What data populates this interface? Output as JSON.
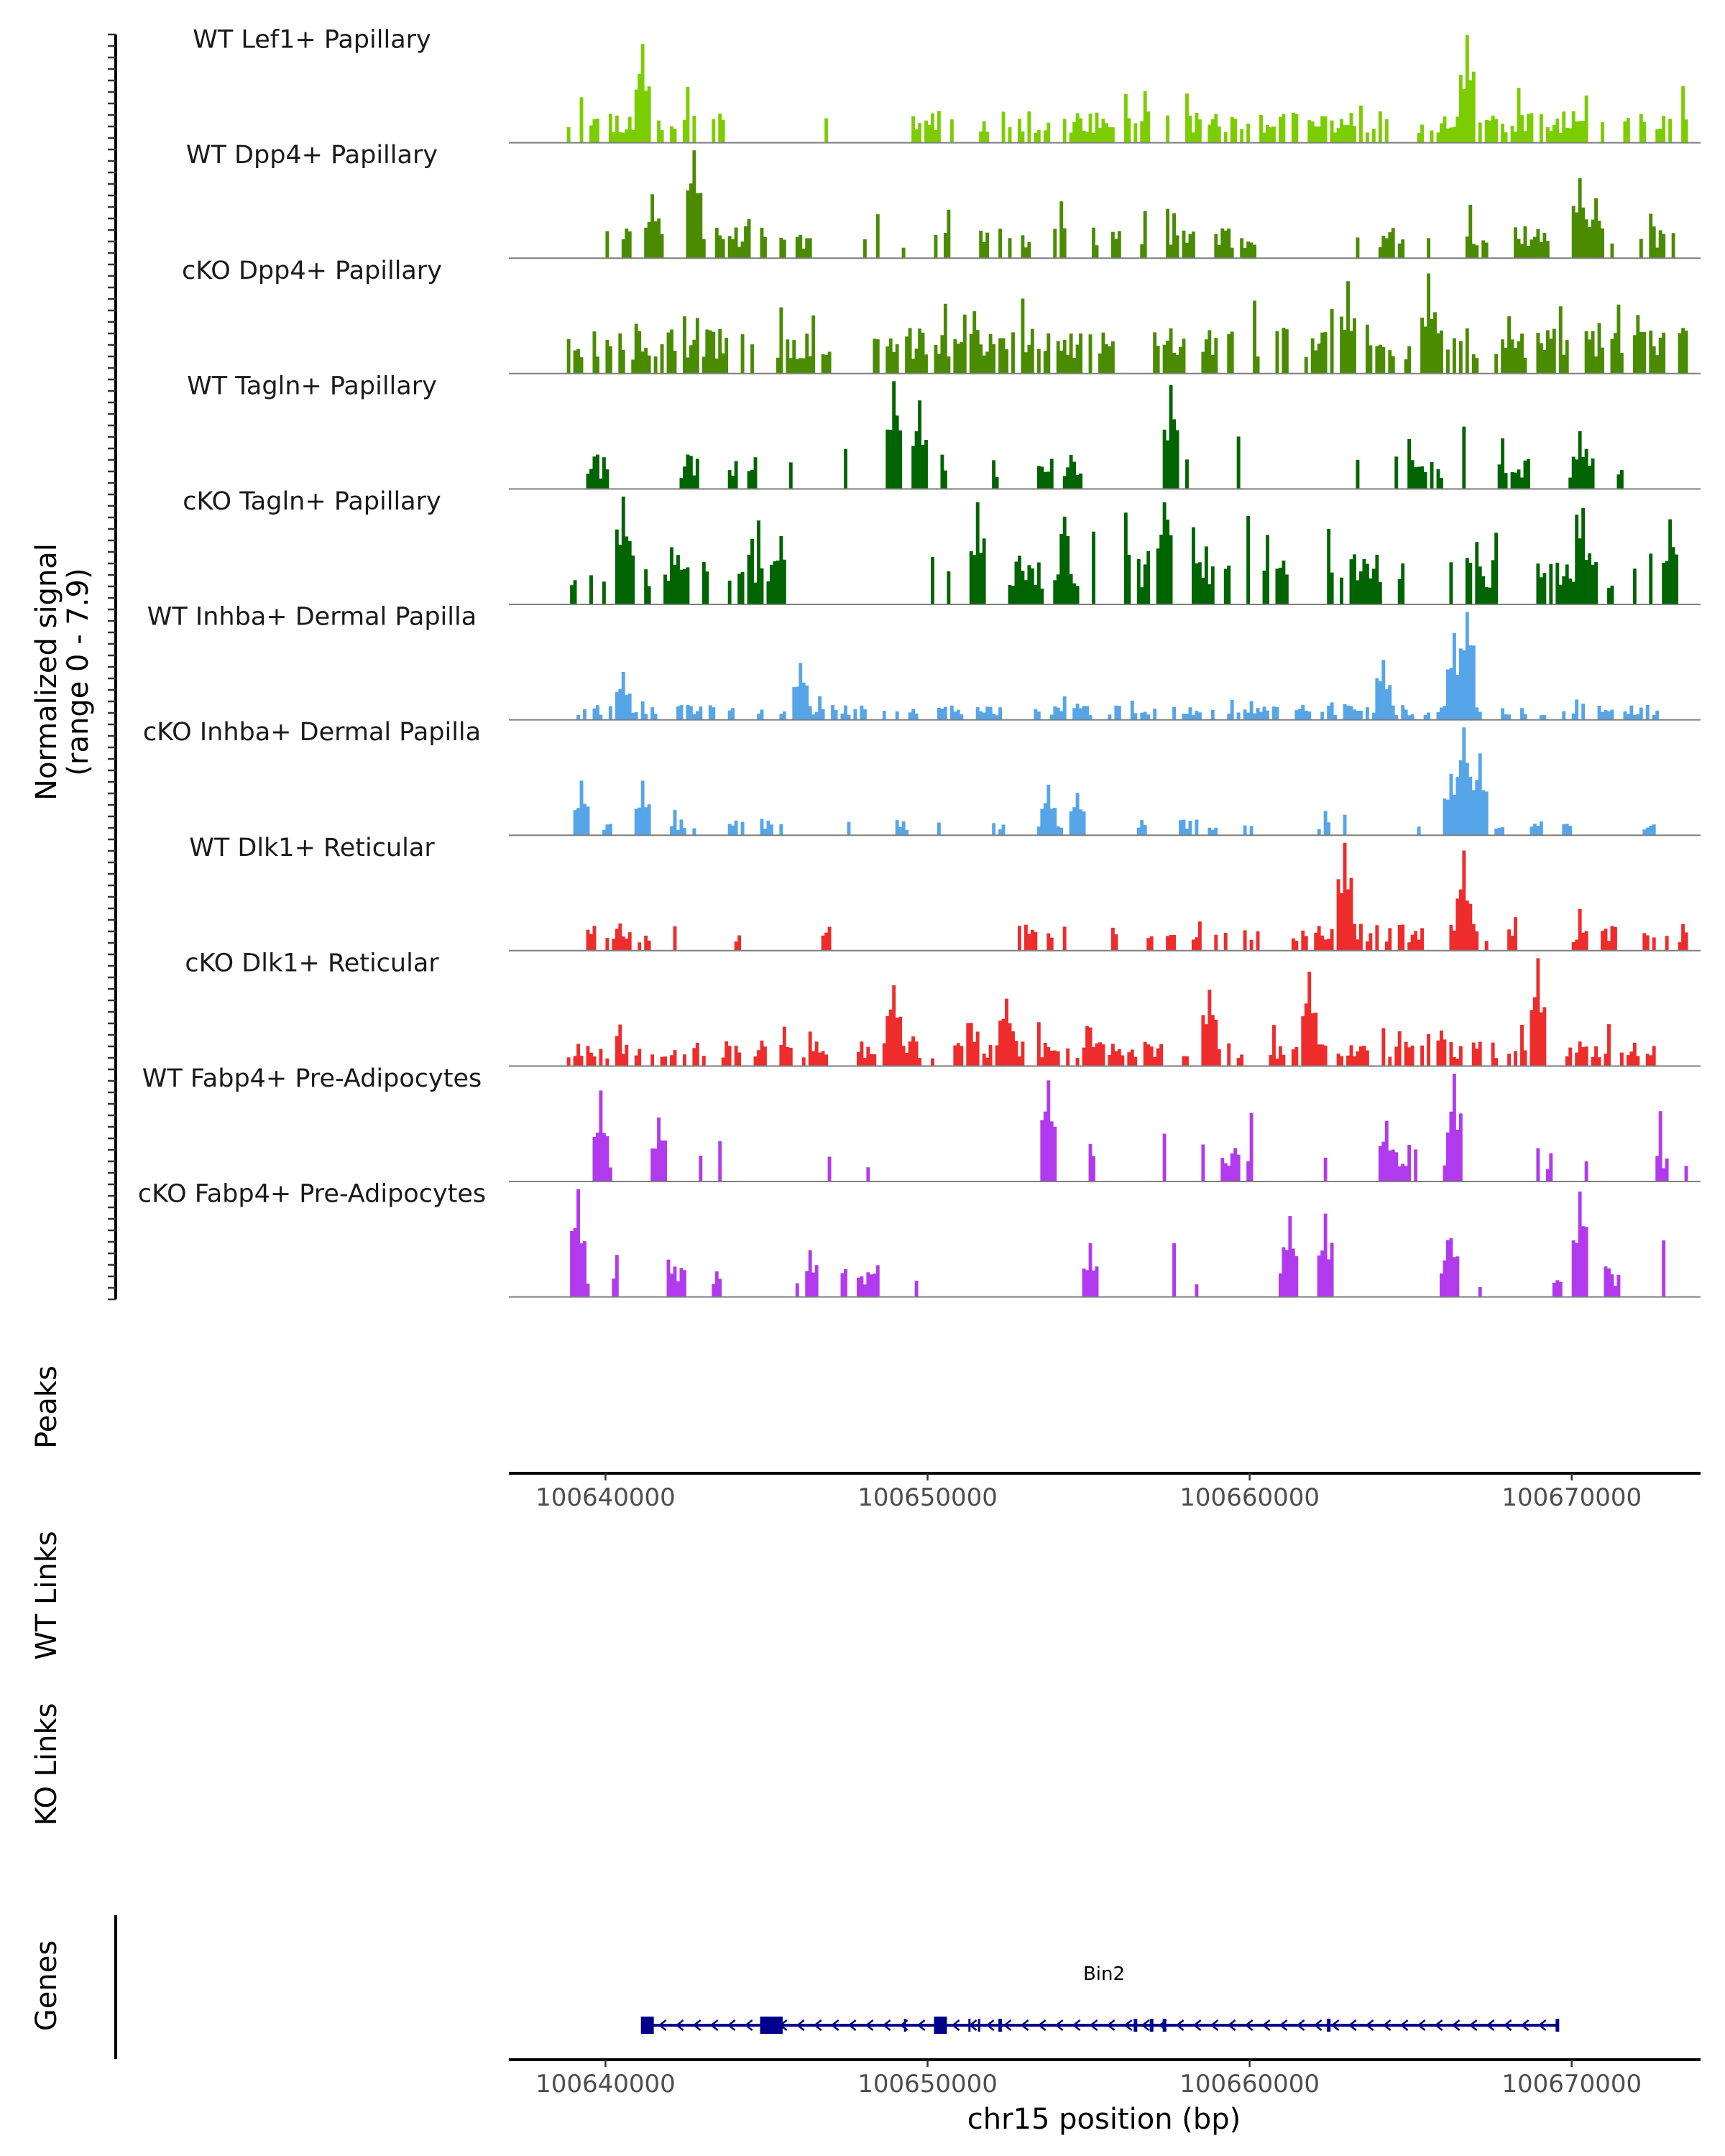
{
  "chart_data": {
    "type": "area",
    "title": "",
    "chromosome": "chr15",
    "xlabel": "chr15 position (bp)",
    "xlim": [
      100637000,
      100674000
    ],
    "x_ticks": [
      100640000,
      100650000,
      100660000,
      100670000
    ],
    "x_tick_labels": [
      "100640000",
      "100650000",
      "100660000",
      "100670000"
    ],
    "ylabel_line1": "Normalized signal",
    "ylabel_line2": "(range 0 - 7.9)",
    "ylim": [
      0,
      7.9
    ],
    "panel_labels": {
      "peaks": "Peaks",
      "wt_links": "WT Links",
      "ko_links": "KO Links",
      "genes": "Genes"
    },
    "series": [
      {
        "name": "WT Lef1+ Papillary",
        "color": "#7CCD00",
        "seed": 11,
        "density": 0.9,
        "base": 0.35,
        "max": 1.2,
        "region": [
          100638800,
          100673600
        ],
        "gaps": [
          [
            100643800,
            100646600
          ],
          [
            100647300,
            100649100
          ],
          [
            100664300,
            100665200
          ]
        ],
        "peaks": [
          [
            100641100,
            1.1
          ],
          [
            100666700,
            1.2
          ]
        ]
      },
      {
        "name": "WT Dpp4+ Papillary",
        "color": "#4A8B00",
        "seed": 23,
        "density": 0.22,
        "base": 0.8,
        "max": 2.7,
        "region": [
          100638800,
          100673600
        ],
        "gaps": [],
        "peaks": [
          [
            100642700,
            2.7
          ],
          [
            100641400,
            1.6
          ],
          [
            100670200,
            2.0
          ],
          [
            100670700,
            1.5
          ]
        ]
      },
      {
        "name": "cKO Dpp4+ Papillary",
        "color": "#4A8B00",
        "seed": 37,
        "density": 0.8,
        "base": 0.6,
        "max": 1.4,
        "region": [
          100638800,
          100673600
        ],
        "gaps": [
          [
            100647000,
            100648200
          ]
        ],
        "peaks": [
          [
            100665500,
            1.3
          ],
          [
            100663000,
            1.2
          ]
        ]
      },
      {
        "name": "WT Tagln+ Papillary",
        "color": "#006400",
        "seed": 41,
        "density": 0.15,
        "base": 0.9,
        "max": 2.8,
        "region": [
          100638800,
          100673600
        ],
        "gaps": [],
        "peaks": [
          [
            100648900,
            2.8
          ],
          [
            100657500,
            2.7
          ],
          [
            100649700,
            2.3
          ],
          [
            100670200,
            1.5
          ]
        ]
      },
      {
        "name": "cKO Tagln+ Papillary",
        "color": "#006400",
        "seed": 53,
        "density": 0.4,
        "base": 0.9,
        "max": 1.9,
        "region": [
          100638800,
          100673600
        ],
        "gaps": [
          [
            100646800,
            100650000
          ]
        ],
        "peaks": [
          [
            100640500,
            1.9
          ],
          [
            100651500,
            1.8
          ],
          [
            100657300,
            1.8
          ],
          [
            100670300,
            1.7
          ],
          [
            100673000,
            1.5
          ]
        ]
      },
      {
        "name": "WT Inhba+ Dermal Papilla",
        "color": "#56A5E8",
        "seed": 67,
        "density": 0.5,
        "base": 0.5,
        "max": 3.6,
        "region": [
          100638800,
          100673600
        ],
        "gaps": [],
        "peaks": [
          [
            100666700,
            3.6
          ],
          [
            100666300,
            2.9
          ],
          [
            100664100,
            2.0
          ],
          [
            100646000,
            1.9
          ],
          [
            100640500,
            1.6
          ]
        ]
      },
      {
        "name": "cKO Inhba+ Dermal Papilla",
        "color": "#56A5E8",
        "seed": 79,
        "density": 0.2,
        "base": 1.2,
        "max": 7.9,
        "region": [
          100638800,
          100673600
        ],
        "gaps": [],
        "peaks": [
          [
            100666600,
            7.9
          ],
          [
            100667100,
            6.0
          ],
          [
            100666200,
            4.5
          ],
          [
            100639200,
            4.0
          ],
          [
            100641100,
            4.0
          ],
          [
            100653700,
            3.7
          ],
          [
            100654600,
            3.1
          ]
        ]
      },
      {
        "name": "WT Dlk1+ Reticular",
        "color": "#EE2C2C",
        "seed": 83,
        "density": 0.45,
        "base": 0.35,
        "max": 1.4,
        "region": [
          100638800,
          100673600
        ],
        "gaps": [
          [
            100647100,
            100652600
          ]
        ],
        "peaks": [
          [
            100662900,
            1.4
          ],
          [
            100666600,
            1.3
          ]
        ]
      },
      {
        "name": "cKO Dlk1+ Reticular",
        "color": "#EE2C2C",
        "seed": 97,
        "density": 0.85,
        "base": 0.55,
        "max": 2.4,
        "region": [
          100638800,
          100672800
        ],
        "gaps": [
          [
            100647000,
            100647800
          ]
        ],
        "peaks": [
          [
            100668900,
            2.4
          ],
          [
            100661800,
            2.1
          ],
          [
            100648900,
            1.8
          ],
          [
            100658700,
            1.7
          ],
          [
            100652400,
            1.5
          ]
        ]
      },
      {
        "name": "WT Fabp4+ Pre-Adipocytes",
        "color": "#B23AEE",
        "seed": 101,
        "density": 0.12,
        "base": 1.2,
        "max": 3.2,
        "region": [
          100638800,
          100673600
        ],
        "gaps": [],
        "peaks": [
          [
            100666300,
            3.2
          ],
          [
            100639800,
            2.7
          ],
          [
            100653700,
            3.0
          ],
          [
            100641600,
            1.9
          ],
          [
            100664200,
            1.8
          ]
        ]
      },
      {
        "name": "cKO Fabp4+ Pre-Adipocytes",
        "color": "#B23AEE",
        "seed": 113,
        "density": 0.12,
        "base": 1.3,
        "max": 4.4,
        "region": [
          100638800,
          100673600
        ],
        "gaps": [],
        "peaks": [
          [
            100639100,
            4.4
          ],
          [
            100670200,
            4.3
          ],
          [
            100661200,
            3.3
          ],
          [
            100662300,
            3.4
          ],
          [
            100666200,
            2.4
          ],
          [
            100655000,
            2.2
          ]
        ]
      }
    ],
    "gene": {
      "name": "Bin2",
      "color": "#00008B",
      "start": 100641300,
      "end": 100669600,
      "strand": "-",
      "exons": [
        [
          100641100,
          100641500
        ],
        [
          100644800,
          100645500
        ],
        [
          100650200,
          100650600
        ],
        [
          100652200,
          100652300
        ],
        [
          100656400,
          100656500
        ],
        [
          100656900,
          100657000
        ],
        [
          100657300,
          100657400
        ],
        [
          100662400,
          100662500
        ],
        [
          100669500,
          100669600
        ]
      ],
      "thin_marks": [
        100649300,
        100651300,
        100651600
      ]
    }
  }
}
